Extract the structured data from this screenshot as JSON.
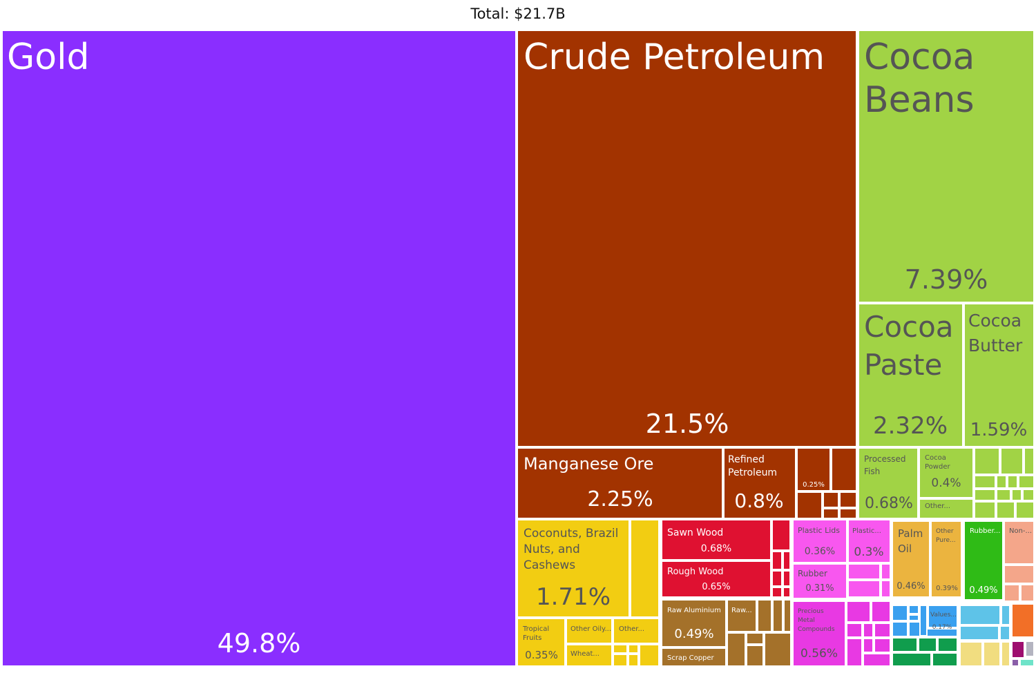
{
  "chart_data": {
    "type": "treemap",
    "title": "Total: $21.7B",
    "tiles": [
      {
        "name": "Gold",
        "share": "49.8%",
        "color": "#8a2eff",
        "text": "#ffffff"
      },
      {
        "name": "Crude Petroleum",
        "share": "21.5%",
        "color": "#a23300",
        "text": "#ffffff"
      },
      {
        "name": "Cocoa Beans",
        "share": "7.39%",
        "color": "#a1d345",
        "text": "#555555"
      },
      {
        "name": "Cocoa Paste",
        "share": "2.32%",
        "color": "#a1d345",
        "text": "#555555"
      },
      {
        "name": "Cocoa Butter",
        "share": "1.59%",
        "color": "#a1d345",
        "text": "#555555"
      },
      {
        "name": "Manganese Ore",
        "share": "2.25%",
        "color": "#a23300",
        "text": "#ffffff"
      },
      {
        "name": "Refined Petroleum",
        "share": "0.8%",
        "color": "#a23300",
        "text": "#ffffff"
      },
      {
        "name": "",
        "share": "0.25%",
        "color": "#a23300",
        "text": "#ffffff"
      },
      {
        "name": "Processed Fish",
        "share": "0.68%",
        "color": "#a1d345",
        "text": "#555555"
      },
      {
        "name": "Cocoa Powder",
        "share": "0.4%",
        "color": "#a1d345",
        "text": "#555555"
      },
      {
        "name": "Other...",
        "share": "",
        "color": "#a1d345",
        "text": "#555555"
      },
      {
        "name": "Coconuts, Brazil Nuts, and Cashews",
        "share": "1.71%",
        "color": "#f2cd12",
        "text": "#555555"
      },
      {
        "name": "Tropical Fruits",
        "share": "0.35%",
        "color": "#f2cd12",
        "text": "#555555"
      },
      {
        "name": "Other Oily...",
        "share": "",
        "color": "#f2cd12",
        "text": "#555555"
      },
      {
        "name": "Other...",
        "share": "",
        "color": "#f2cd12",
        "text": "#555555"
      },
      {
        "name": "Wheat...",
        "share": "",
        "color": "#f2cd12",
        "text": "#555555"
      },
      {
        "name": "Sawn Wood",
        "share": "0.68%",
        "color": "#df1131",
        "text": "#ffffff"
      },
      {
        "name": "Rough Wood",
        "share": "0.65%",
        "color": "#df1131",
        "text": "#ffffff"
      },
      {
        "name": "Plastic Lids",
        "share": "0.36%",
        "color": "#f857ef",
        "text": "#555555"
      },
      {
        "name": "Plastic...",
        "share": "0.3%",
        "color": "#f857ef",
        "text": "#555555"
      },
      {
        "name": "Rubber",
        "share": "0.31%",
        "color": "#f857ef",
        "text": "#555555"
      },
      {
        "name": "Raw Aluminium",
        "share": "0.49%",
        "color": "#a4712a",
        "text": "#ffffff"
      },
      {
        "name": "Raw...",
        "share": "",
        "color": "#a4712a",
        "text": "#ffffff"
      },
      {
        "name": "Scrap Copper",
        "share": "",
        "color": "#a4712a",
        "text": "#ffffff"
      },
      {
        "name": "Precious Metal Compounds",
        "share": "0.56%",
        "color": "#e839e3",
        "text": "#555555"
      },
      {
        "name": "Palm Oil",
        "share": "0.46%",
        "color": "#ebb43f",
        "text": "#555555"
      },
      {
        "name": "Other Pure...",
        "share": "0.39%",
        "color": "#ebb43f",
        "text": "#555555"
      },
      {
        "name": "Rubber...",
        "share": "0.49%",
        "color": "#2fbb16",
        "text": "#ffffff"
      },
      {
        "name": "Non-...",
        "share": "",
        "color": "#f4a68a",
        "text": "#555555"
      },
      {
        "name": "Values...",
        "share": "0.17%",
        "color": "#3aa0ef",
        "text": "#555555"
      }
    ]
  }
}
